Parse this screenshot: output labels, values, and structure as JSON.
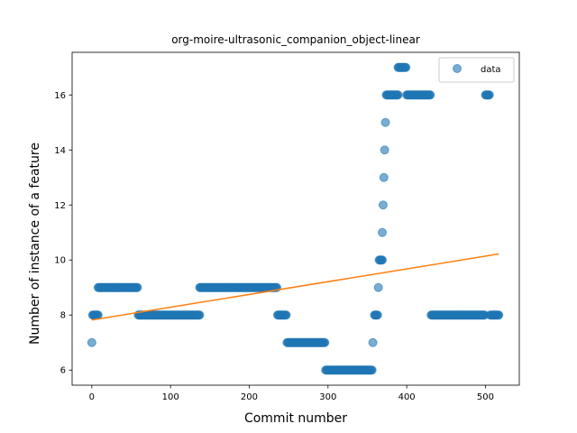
{
  "chart_data": {
    "type": "scatter",
    "title": "org-moire-ultrasonic_companion_object-linear",
    "xlabel": "Commit number",
    "ylabel": "Number of instance of a feature",
    "xlim": [
      -25,
      543
    ],
    "ylim": [
      5.45,
      17.55
    ],
    "xticks": [
      0,
      100,
      200,
      300,
      400,
      500
    ],
    "yticks": [
      6,
      8,
      10,
      12,
      14,
      16
    ],
    "legend": {
      "position": "top-right",
      "entries": [
        "data"
      ]
    },
    "grid": false,
    "colors": {
      "data": "#1f77b4",
      "fit": "#ff7f0e"
    },
    "series": [
      {
        "name": "data",
        "kind": "scatter",
        "segments": [
          {
            "x_start": 0,
            "x_end": 0,
            "y": 7
          },
          {
            "x_start": 1,
            "x_end": 8,
            "y": 8
          },
          {
            "x_start": 8,
            "x_end": 58,
            "y": 9
          },
          {
            "x_start": 59,
            "x_end": 137,
            "y": 8
          },
          {
            "x_start": 137,
            "x_end": 235,
            "y": 9
          },
          {
            "x_start": 236,
            "x_end": 247,
            "y": 8
          },
          {
            "x_start": 248,
            "x_end": 296,
            "y": 7
          },
          {
            "x_start": 297,
            "x_end": 356,
            "y": 6
          },
          {
            "x_start": 357,
            "x_end": 357,
            "y": 7
          },
          {
            "x_start": 359,
            "x_end": 363,
            "y": 8
          },
          {
            "x_start": 364,
            "x_end": 364,
            "y": 9
          },
          {
            "x_start": 365,
            "x_end": 369,
            "y": 10
          },
          {
            "x_start": 369,
            "x_end": 369,
            "y": 11
          },
          {
            "x_start": 370,
            "x_end": 370,
            "y": 12
          },
          {
            "x_start": 371,
            "x_end": 371,
            "y": 13
          },
          {
            "x_start": 372,
            "x_end": 372,
            "y": 14
          },
          {
            "x_start": 373,
            "x_end": 373,
            "y": 15
          },
          {
            "x_start": 374,
            "x_end": 389,
            "y": 16
          },
          {
            "x_start": 389,
            "x_end": 399,
            "y": 17
          },
          {
            "x_start": 400,
            "x_end": 430,
            "y": 16
          },
          {
            "x_start": 431,
            "x_end": 499,
            "y": 8
          },
          {
            "x_start": 500,
            "x_end": 505,
            "y": 16
          },
          {
            "x_start": 506,
            "x_end": 517,
            "y": 8
          }
        ]
      },
      {
        "kind": "line",
        "x": [
          0,
          517
        ],
        "y": [
          7.82,
          10.22
        ]
      }
    ]
  }
}
